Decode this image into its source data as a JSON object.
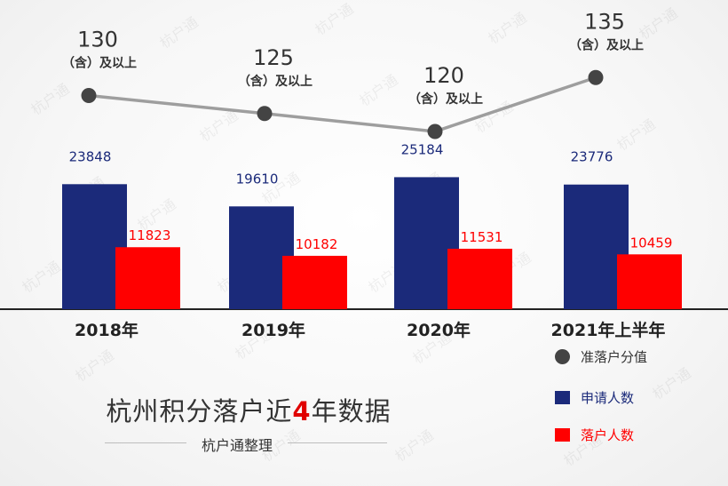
{
  "chart_data": {
    "type": "bar",
    "categories": [
      "2018年",
      "2019年",
      "2020年",
      "2021年上半年"
    ],
    "series": [
      {
        "name": "申请人数",
        "type": "bar",
        "color": "#1b2a7a",
        "values": [
          23848,
          19610,
          25184,
          23776
        ]
      },
      {
        "name": "落户人数",
        "type": "bar",
        "color": "#ff0000",
        "values": [
          11823,
          10182,
          11531,
          10459
        ]
      },
      {
        "name": "准落户分值",
        "type": "line",
        "color": "#444444",
        "line_color": "#9e9e9e",
        "values": [
          130,
          125,
          120,
          135
        ],
        "label_suffix": "（含）及以上"
      }
    ],
    "grid": false
  },
  "caption": {
    "title_pre": "杭州积分落户近",
    "title_num": "4",
    "title_post": "年数据",
    "subtitle": "杭户通整理"
  },
  "legend": {
    "position": "bottom-right",
    "items": [
      {
        "label": "准落户分值",
        "marker": "dot-icon",
        "color": "#444444"
      },
      {
        "label": "申请人数",
        "marker": "square-icon",
        "color": "#1b2a7a"
      },
      {
        "label": "落户人数",
        "marker": "square-icon",
        "color": "#ff0000"
      }
    ]
  },
  "watermark": "杭户通"
}
